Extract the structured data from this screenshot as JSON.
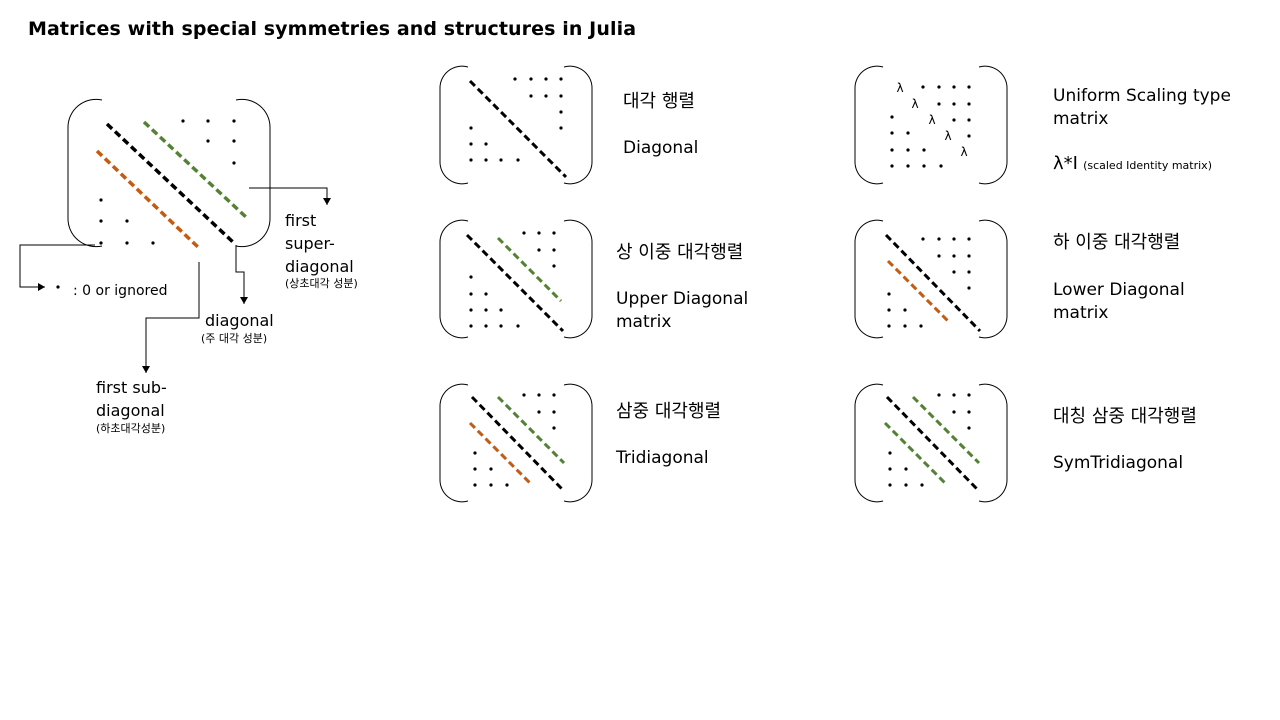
{
  "title": "Matrices with special symmetries and structures in Julia",
  "legend": {
    "dot_label": ": 0 or ignored",
    "super_label": [
      "first",
      "super-",
      "diagonal"
    ],
    "super_label_ko": "(상초대각 성분)",
    "diag_label": "diagonal",
    "diag_label_ko": "(주 대각 성분)",
    "sub_label": [
      "first sub-",
      "diagonal"
    ],
    "sub_label_ko": "(하초대각성분)"
  },
  "matrices": [
    {
      "id": "diagonal",
      "ko": "대각 행렬",
      "en": [
        "Diagonal"
      ],
      "bands": [
        "main"
      ]
    },
    {
      "id": "uniform-scaling",
      "en": [
        "Uniform Scaling type",
        "matrix"
      ],
      "formula": "λ*I",
      "formula_note": "(scaled Identity matrix)",
      "symbol": "λ"
    },
    {
      "id": "upper-bidiagonal",
      "ko": "상 이중 대각행렬",
      "en": [
        "Upper Diagonal",
        "matrix"
      ],
      "bands": [
        "main",
        "super"
      ]
    },
    {
      "id": "lower-bidiagonal",
      "ko": "하 이중 대각행렬",
      "en": [
        "Lower Diagonal",
        "matrix"
      ],
      "bands": [
        "main",
        "sub"
      ]
    },
    {
      "id": "tridiagonal",
      "ko": "삼중 대각행렬",
      "en": [
        "Tridiagonal"
      ],
      "bands": [
        "main",
        "super",
        "sub"
      ]
    },
    {
      "id": "sym-tridiagonal",
      "ko": "대칭 삼중 대각행렬",
      "en": [
        "SymTridiagonal"
      ],
      "bands": [
        "main",
        "super",
        "sub-green"
      ]
    }
  ],
  "colors": {
    "main": "#000000",
    "super": "#548235",
    "sub": "#c55a11"
  }
}
